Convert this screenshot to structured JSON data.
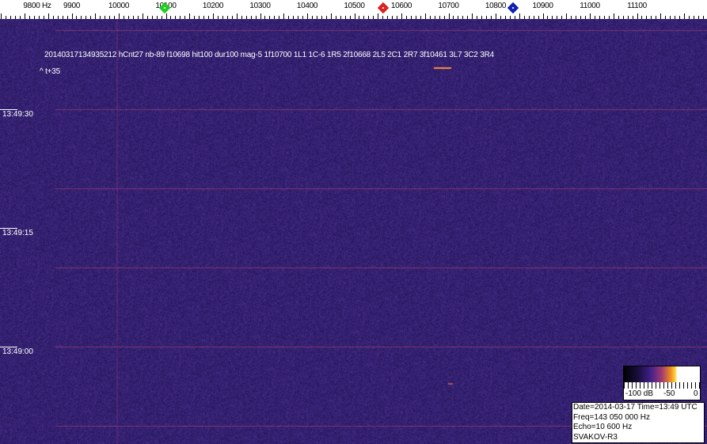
{
  "frequency_axis": {
    "labels": [
      "9800 Hz",
      "9900",
      "10000",
      "10100",
      "10200",
      "10300",
      "10400",
      "10500",
      "10600",
      "10700",
      "10800",
      "10900",
      "11000",
      "11100"
    ],
    "values": [
      9800,
      9900,
      10000,
      10100,
      10200,
      10300,
      10400,
      10500,
      10600,
      10700,
      10800,
      10900,
      11000,
      11100
    ],
    "markers": [
      {
        "name": "green-marker",
        "freq": 10098,
        "color": "#22cc22"
      },
      {
        "name": "red-marker",
        "freq": 10561,
        "color": "#dd2020"
      },
      {
        "name": "blue-marker",
        "freq": 10837,
        "color": "#1020b0"
      }
    ]
  },
  "detection_line": "20140317134935212 hCnt27 nb-89 f10698 hit100 dur100 mag-5 1f10700 1L1 1C-6 1R5 2f10668 2L5 2C1 2R7 3f10461 3L7 3C2 3R4",
  "offset_label": "^ t+35",
  "time_labels": [
    "13:49:30",
    "13:49:15",
    "13:49:00"
  ],
  "colorbar": {
    "labels": [
      "-100 dB",
      "-50",
      "0"
    ]
  },
  "info": {
    "date_time": "Date=2014-03-17 Time=13:49 UTC",
    "freq": "Freq=143 050 000 Hz",
    "echo": "Echo=10 600 Hz",
    "station": "SVAKOV-R3"
  },
  "colors": {
    "background": "#2b2070",
    "accent_line": "#b04070",
    "meteor": "#ff9040"
  }
}
